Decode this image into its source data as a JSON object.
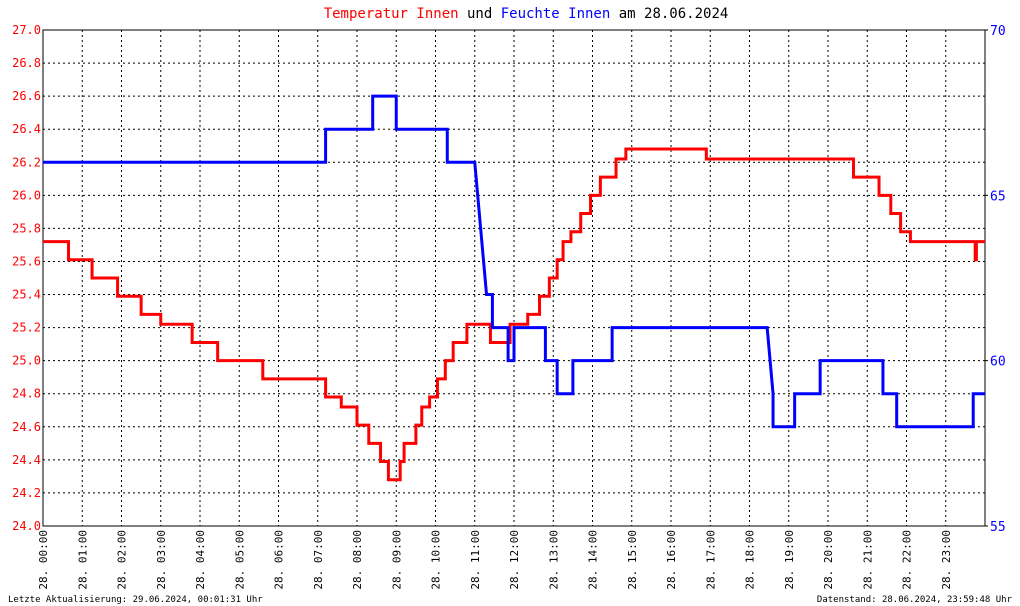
{
  "chart_data": {
    "type": "line",
    "title": [
      "Temperatur Innen",
      "und",
      "Feuchte Innen",
      "am 28.06.2024"
    ],
    "xlim": [
      0,
      24
    ],
    "xticks": [
      {
        "value": 0,
        "label": "28. 00:00"
      },
      {
        "value": 1,
        "label": "28. 01:00"
      },
      {
        "value": 2,
        "label": "28. 02:00"
      },
      {
        "value": 3,
        "label": "28. 03:00"
      },
      {
        "value": 4,
        "label": "28. 04:00"
      },
      {
        "value": 5,
        "label": "28. 05:00"
      },
      {
        "value": 6,
        "label": "28. 06:00"
      },
      {
        "value": 7,
        "label": "28. 07:00"
      },
      {
        "value": 8,
        "label": "28. 08:00"
      },
      {
        "value": 9,
        "label": "28. 09:00"
      },
      {
        "value": 10,
        "label": "28. 10:00"
      },
      {
        "value": 11,
        "label": "28. 11:00"
      },
      {
        "value": 12,
        "label": "28. 12:00"
      },
      {
        "value": 13,
        "label": "28. 13:00"
      },
      {
        "value": 14,
        "label": "28. 14:00"
      },
      {
        "value": 15,
        "label": "28. 15:00"
      },
      {
        "value": 16,
        "label": "28. 16:00"
      },
      {
        "value": 17,
        "label": "28. 17:00"
      },
      {
        "value": 18,
        "label": "28. 18:00"
      },
      {
        "value": 19,
        "label": "28. 19:00"
      },
      {
        "value": 20,
        "label": "28. 20:00"
      },
      {
        "value": 21,
        "label": "28. 21:00"
      },
      {
        "value": 22,
        "label": "28. 22:00"
      },
      {
        "value": 23,
        "label": "28. 23:00"
      }
    ],
    "ylim": [
      24,
      27
    ],
    "yticks": [
      {
        "value": 24,
        "label": "24.0"
      },
      {
        "value": 24.2,
        "label": "24.2"
      },
      {
        "value": 24.4,
        "label": "24.4"
      },
      {
        "value": 24.6,
        "label": "24.6"
      },
      {
        "value": 24.8,
        "label": "24.8"
      },
      {
        "value": 25,
        "label": "25.0"
      },
      {
        "value": 25.2,
        "label": "25.2"
      },
      {
        "value": 25.4,
        "label": "25.4"
      },
      {
        "value": 25.6,
        "label": "25.6"
      },
      {
        "value": 25.8,
        "label": "25.8"
      },
      {
        "value": 26,
        "label": "26.0"
      },
      {
        "value": 26.2,
        "label": "26.2"
      },
      {
        "value": 26.4,
        "label": "26.4"
      },
      {
        "value": 26.6,
        "label": "26.6"
      },
      {
        "value": 26.8,
        "label": "26.8"
      },
      {
        "value": 27,
        "label": "27.0"
      }
    ],
    "y2lim": [
      55,
      70
    ],
    "y2ticks": [
      55,
      60,
      65,
      70
    ],
    "grid": true,
    "series": [
      {
        "color": "#ff0000",
        "x": [
          0,
          0.65,
          0.65,
          1.25,
          1.25,
          1.9,
          1.9,
          2.5,
          2.5,
          3.0,
          3.0,
          3.8,
          3.8,
          4.45,
          4.45,
          5.6,
          5.6,
          7.2,
          7.2,
          7.6,
          7.6,
          8.0,
          8.0,
          8.3,
          8.3,
          8.6,
          8.6,
          8.8,
          8.8,
          9.1,
          9.1,
          9.2,
          9.2,
          9.5,
          9.5,
          9.65,
          9.65,
          9.85,
          9.85,
          10.05,
          10.05,
          10.25,
          10.25,
          10.45,
          10.45,
          10.8,
          10.8,
          11.4,
          11.4,
          11.9,
          11.9,
          12.35,
          12.35,
          12.65,
          12.65,
          12.9,
          12.9,
          13.1,
          13.1,
          13.25,
          13.25,
          13.45,
          13.45,
          13.7,
          13.7,
          13.95,
          13.95,
          14.2,
          14.2,
          14.6,
          14.6,
          14.85,
          14.85,
          16.9,
          16.9,
          20.65,
          20.65,
          21.3,
          21.3,
          21.6,
          21.6,
          21.85,
          21.85,
          22.1,
          22.1,
          23.75,
          23.75,
          23.78,
          23.78,
          24
        ],
        "values": [
          25.72,
          25.72,
          25.61,
          25.61,
          25.5,
          25.5,
          25.39,
          25.39,
          25.28,
          25.28,
          25.22,
          25.22,
          25.11,
          25.11,
          25.0,
          25.0,
          24.89,
          24.89,
          24.78,
          24.78,
          24.72,
          24.72,
          24.61,
          24.61,
          24.5,
          24.5,
          24.39,
          24.39,
          24.28,
          24.28,
          24.39,
          24.39,
          24.5,
          24.5,
          24.61,
          24.61,
          24.72,
          24.72,
          24.78,
          24.78,
          24.89,
          24.89,
          25.0,
          25.0,
          25.11,
          25.11,
          25.22,
          25.22,
          25.11,
          25.11,
          25.22,
          25.22,
          25.28,
          25.28,
          25.39,
          25.39,
          25.5,
          25.5,
          25.61,
          25.61,
          25.72,
          25.72,
          25.78,
          25.78,
          25.89,
          25.89,
          26.0,
          26.0,
          26.11,
          26.11,
          26.22,
          26.22,
          26.28,
          26.28,
          26.22,
          26.22,
          26.11,
          26.11,
          26.0,
          26.0,
          25.89,
          25.89,
          25.78,
          25.78,
          25.72,
          25.72,
          25.61,
          25.61,
          25.72,
          25.72
        ]
      },
      {
        "color": "#0000ff",
        "axis": "y2",
        "x": [
          0,
          7.2,
          7.2,
          8.4,
          8.4,
          9.0,
          9.0,
          10.3,
          10.3,
          11.0,
          11.3,
          11.45,
          11.45,
          11.85,
          11.85,
          12.0,
          12.0,
          12.8,
          12.8,
          13.1,
          13.1,
          13.5,
          13.5,
          14.5,
          14.5,
          18.45,
          18.6,
          18.6,
          19.15,
          19.15,
          19.8,
          19.8,
          21.4,
          21.4,
          21.75,
          21.75,
          23.7,
          23.7,
          24
        ],
        "values": [
          66,
          66,
          67,
          67,
          68,
          68,
          67,
          67,
          66,
          66,
          62,
          62,
          61,
          61,
          60,
          60,
          61,
          61,
          60,
          60,
          59,
          59,
          60,
          60,
          61,
          61,
          59,
          58,
          58,
          59,
          59,
          60,
          60,
          59,
          59,
          58,
          58,
          59,
          59
        ]
      }
    ],
    "notes": [
      "Letzte Aktualisierung: 29.06.2024, 00:01:31 Uhr",
      "Datenstand: 28.06.2024, 23:59:48 Uhr"
    ]
  }
}
